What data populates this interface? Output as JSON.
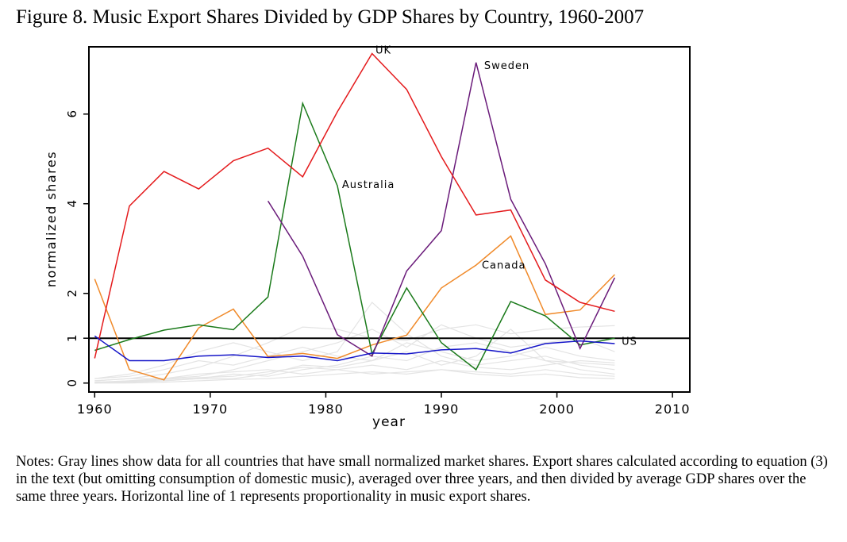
{
  "title": "Figure 8. Music Export Shares Divided by GDP Shares by Country, 1960-2007",
  "notes": "Notes: Gray lines show data for all countries that have small normalized market shares.  Export shares calculated according to equation (3) in the text (but omitting consumption of domestic music), averaged over three years, and then divided by average GDP shares over the same three years.  Horizontal line of 1 represents proportionality in music export shares.",
  "chart_data": {
    "type": "line",
    "xlabel": "year",
    "ylabel": "normalized shares",
    "xlim": [
      1959.5,
      2011.5
    ],
    "ylim": [
      -0.2,
      7.5
    ],
    "xticks": [
      1960,
      1970,
      1980,
      1990,
      2000,
      2010
    ],
    "yticks": [
      0,
      1,
      2,
      4,
      6
    ],
    "reference_line": 1,
    "grid": false,
    "colors": {
      "UK": "#e41a1c",
      "Sweden": "#6a1b7a",
      "Australia": "#1a7a1a",
      "Canada": "#f08a2a",
      "US": "#1515c8",
      "others": "#e4e4e4"
    },
    "series": [
      {
        "name": "UK",
        "label": "UK",
        "x": [
          1960,
          1963,
          1966,
          1969,
          1972,
          1975,
          1978,
          1981,
          1984,
          1987,
          1990,
          1993,
          1996,
          1999,
          2002,
          2005
        ],
        "y": [
          0.55,
          3.95,
          4.72,
          4.33,
          4.96,
          5.24,
          4.6,
          6.05,
          7.35,
          6.55,
          5.05,
          3.75,
          3.86,
          2.3,
          1.8,
          1.6
        ]
      },
      {
        "name": "Sweden",
        "label": "Sweden",
        "x": [
          1975,
          1978,
          1981,
          1984,
          1987,
          1990,
          1993,
          1996,
          1999,
          2002,
          2005
        ],
        "y": [
          4.06,
          2.83,
          1.08,
          0.6,
          2.5,
          3.4,
          7.15,
          4.1,
          2.66,
          0.77,
          2.35
        ]
      },
      {
        "name": "Australia",
        "label": "Australia",
        "x": [
          1960,
          1963,
          1966,
          1969,
          1972,
          1975,
          1978,
          1981,
          1984,
          1987,
          1990,
          1993,
          1996,
          1999,
          2002,
          2005
        ],
        "y": [
          0.73,
          0.97,
          1.18,
          1.3,
          1.19,
          1.92,
          6.24,
          4.4,
          0.65,
          2.12,
          0.9,
          0.3,
          1.82,
          1.5,
          0.85,
          1.0
        ]
      },
      {
        "name": "Canada",
        "label": "Canada",
        "x": [
          1960,
          1963,
          1966,
          1969,
          1972,
          1975,
          1978,
          1981,
          1984,
          1987,
          1990,
          1993,
          1996,
          1999,
          2002,
          2005
        ],
        "y": [
          2.32,
          0.3,
          0.07,
          1.23,
          1.65,
          0.59,
          0.66,
          0.55,
          0.85,
          1.07,
          2.12,
          2.63,
          3.28,
          1.53,
          1.63,
          2.42
        ]
      },
      {
        "name": "US",
        "label": "US",
        "x": [
          1960,
          1963,
          1966,
          1969,
          1972,
          1975,
          1978,
          1981,
          1984,
          1987,
          1990,
          1993,
          1996,
          1999,
          2002,
          2005
        ],
        "y": [
          1.05,
          0.5,
          0.5,
          0.6,
          0.63,
          0.57,
          0.6,
          0.5,
          0.67,
          0.65,
          0.74,
          0.77,
          0.67,
          0.88,
          0.94,
          0.88
        ]
      },
      {
        "x": [
          1960,
          1963,
          1966,
          1969,
          1972,
          1975,
          1978,
          1981,
          1984,
          1987,
          1990,
          1993,
          1996,
          1999,
          2002,
          2005
        ],
        "y": [
          0.05,
          0.1,
          0.2,
          0.35,
          0.6,
          0.9,
          1.25,
          1.2,
          1.0,
          0.95,
          1.2,
          1.3,
          1.1,
          1.2,
          1.25,
          1.28
        ]
      },
      {
        "x": [
          1960,
          1963,
          1966,
          1969,
          1972,
          1975,
          1978,
          1981,
          1984,
          1987,
          1990,
          1993,
          1996,
          1999,
          2002,
          2005
        ],
        "y": [
          0.1,
          0.2,
          0.4,
          0.7,
          0.9,
          0.7,
          0.5,
          0.7,
          1.8,
          1.1,
          0.6,
          0.4,
          0.5,
          0.6,
          0.4,
          0.3
        ]
      },
      {
        "x": [
          1960,
          1963,
          1966,
          1969,
          1972,
          1975,
          1978,
          1981,
          1984,
          1987,
          1990,
          1993,
          1996,
          1999,
          2002,
          2005
        ],
        "y": [
          0.02,
          0.05,
          0.1,
          0.15,
          0.3,
          0.5,
          0.7,
          0.9,
          1.2,
          0.8,
          1.3,
          1.0,
          0.8,
          0.9,
          1.0,
          0.7
        ]
      },
      {
        "x": [
          1960,
          1963,
          1966,
          1969,
          1972,
          1975,
          1978,
          1981,
          1984,
          1987,
          1990,
          1993,
          1996,
          1999,
          2002,
          2005
        ],
        "y": [
          0.0,
          0.02,
          0.05,
          0.1,
          0.1,
          0.2,
          0.4,
          0.35,
          0.5,
          0.7,
          0.4,
          0.6,
          1.2,
          0.5,
          0.3,
          0.2
        ]
      },
      {
        "x": [
          1960,
          1963,
          1966,
          1969,
          1972,
          1975,
          1978,
          1981,
          1984,
          1987,
          1990,
          1993,
          1996,
          1999,
          2002,
          2005
        ],
        "y": [
          0.05,
          0.1,
          0.1,
          0.2,
          0.25,
          0.3,
          0.2,
          0.3,
          0.4,
          0.3,
          0.5,
          0.35,
          0.3,
          0.4,
          0.5,
          0.45
        ]
      },
      {
        "x": [
          1960,
          1963,
          1966,
          1969,
          1972,
          1975,
          1978,
          1981,
          1984,
          1987,
          1990,
          1993,
          1996,
          1999,
          2002,
          2005
        ],
        "y": [
          0.0,
          0.0,
          0.02,
          0.05,
          0.08,
          0.1,
          0.15,
          0.2,
          0.25,
          0.2,
          0.3,
          0.25,
          0.2,
          0.3,
          0.2,
          0.15
        ]
      },
      {
        "x": [
          1960,
          1963,
          1966,
          1969,
          1972,
          1975,
          1978,
          1981,
          1984,
          1987,
          1990,
          1993,
          1996,
          1999,
          2002,
          2005
        ],
        "y": [
          0.1,
          0.15,
          0.3,
          0.5,
          0.4,
          0.6,
          0.8,
          0.6,
          0.5,
          0.9,
          0.7,
          0.5,
          0.6,
          0.8,
          0.6,
          0.5
        ]
      },
      {
        "x": [
          1960,
          1963,
          1966,
          1969,
          1972,
          1975,
          1978,
          1981,
          1984,
          1987,
          1990,
          1993,
          1996,
          1999,
          2002,
          2005
        ],
        "y": [
          0.0,
          0.05,
          0.05,
          0.1,
          0.2,
          0.15,
          0.3,
          0.4,
          0.6,
          0.5,
          0.8,
          0.9,
          0.7,
          0.5,
          0.45,
          0.4
        ]
      },
      {
        "x": [
          1960,
          1963,
          1966,
          1969,
          1972,
          1975,
          1978,
          1981,
          1984,
          1987,
          1990,
          1993,
          1996,
          1999,
          2002,
          2005
        ],
        "y": [
          0.02,
          0.03,
          0.08,
          0.12,
          0.15,
          0.25,
          0.35,
          0.3,
          0.2,
          0.25,
          0.3,
          0.2,
          0.15,
          0.2,
          0.12,
          0.1
        ]
      }
    ]
  }
}
